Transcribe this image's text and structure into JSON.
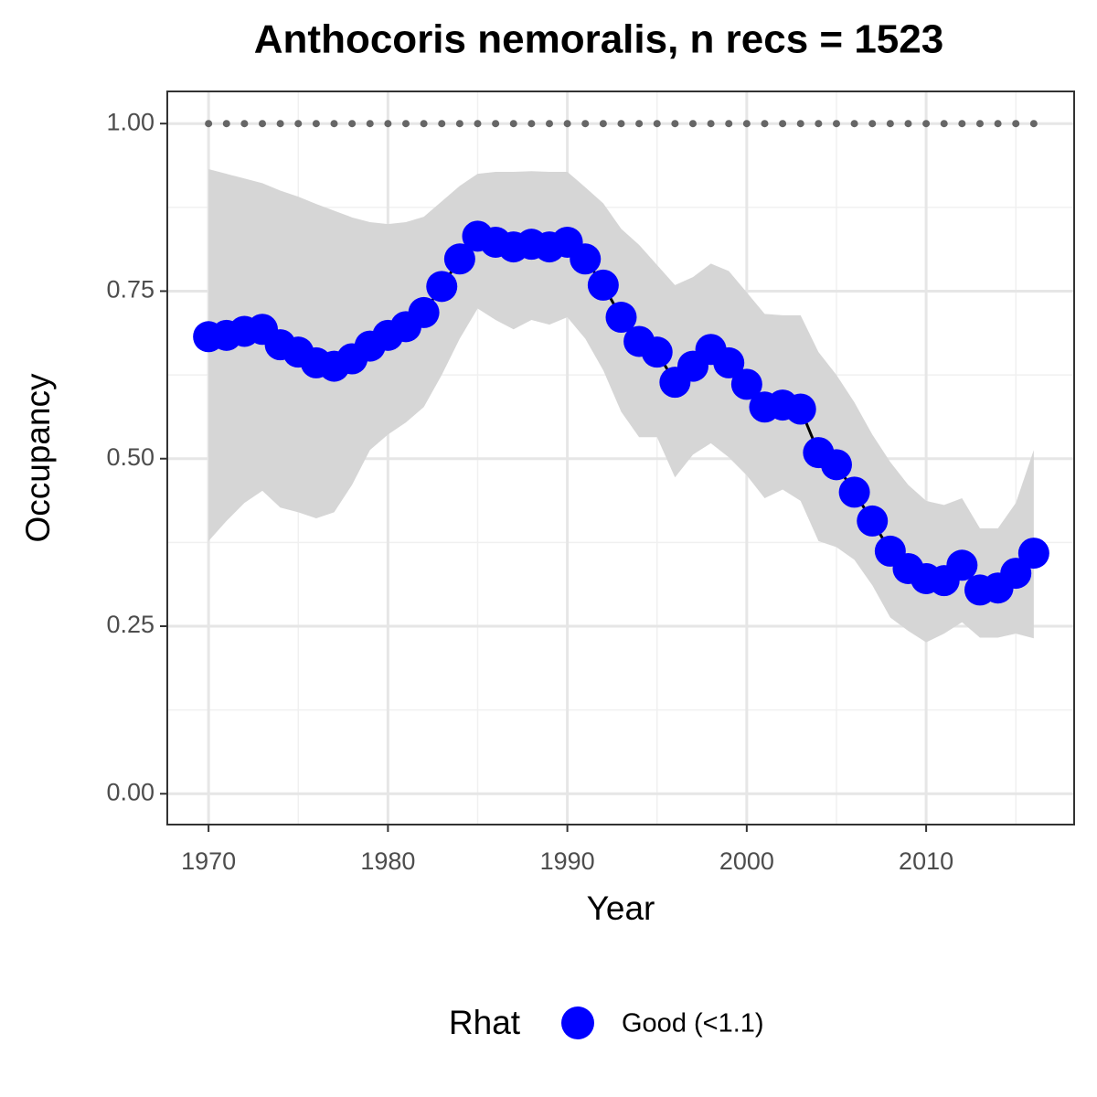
{
  "chart_data": {
    "type": "line",
    "title": "Anthocoris nemoralis, n recs = 1523",
    "x_label": "Year",
    "y_label": "Occupancy",
    "legend_title": "Rhat",
    "x": [
      1970,
      1971,
      1972,
      1973,
      1974,
      1975,
      1976,
      1977,
      1978,
      1979,
      1980,
      1981,
      1982,
      1983,
      1984,
      1985,
      1986,
      1987,
      1988,
      1989,
      1990,
      1991,
      1992,
      1993,
      1994,
      1995,
      1996,
      1997,
      1998,
      1999,
      2000,
      2001,
      2002,
      2003,
      2004,
      2005,
      2006,
      2007,
      2008,
      2009,
      2010,
      2011,
      2012,
      2013,
      2014,
      2015,
      2016
    ],
    "series": [
      {
        "name": "Good (<1.1)",
        "color": "#0000ff",
        "values": [
          0.682,
          0.684,
          0.69,
          0.693,
          0.67,
          0.659,
          0.643,
          0.638,
          0.649,
          0.668,
          0.684,
          0.697,
          0.718,
          0.757,
          0.798,
          0.832,
          0.823,
          0.816,
          0.82,
          0.816,
          0.823,
          0.798,
          0.759,
          0.711,
          0.675,
          0.659,
          0.614,
          0.638,
          0.663,
          0.643,
          0.611,
          0.577,
          0.58,
          0.574,
          0.509,
          0.491,
          0.45,
          0.407,
          0.362,
          0.336,
          0.321,
          0.318,
          0.341,
          0.304,
          0.307,
          0.329,
          0.359
        ]
      }
    ],
    "band": {
      "color": "#d6d6d6",
      "upper": [
        0.932,
        0.925,
        0.918,
        0.911,
        0.9,
        0.891,
        0.88,
        0.87,
        0.86,
        0.853,
        0.85,
        0.853,
        0.861,
        0.884,
        0.907,
        0.925,
        0.928,
        0.928,
        0.929,
        0.928,
        0.928,
        0.905,
        0.881,
        0.843,
        0.819,
        0.789,
        0.759,
        0.771,
        0.791,
        0.78,
        0.748,
        0.716,
        0.714,
        0.714,
        0.659,
        0.625,
        0.584,
        0.536,
        0.495,
        0.461,
        0.437,
        0.431,
        0.441,
        0.396,
        0.396,
        0.434,
        0.513
      ],
      "lower": [
        0.377,
        0.407,
        0.434,
        0.452,
        0.427,
        0.42,
        0.411,
        0.42,
        0.461,
        0.513,
        0.536,
        0.554,
        0.577,
        0.625,
        0.679,
        0.724,
        0.707,
        0.693,
        0.707,
        0.7,
        0.711,
        0.679,
        0.632,
        0.57,
        0.532,
        0.532,
        0.472,
        0.506,
        0.523,
        0.502,
        0.475,
        0.441,
        0.454,
        0.437,
        0.377,
        0.368,
        0.349,
        0.311,
        0.263,
        0.243,
        0.226,
        0.239,
        0.256,
        0.233,
        0.233,
        0.239,
        0.232
      ]
    },
    "reference": {
      "color": "#666666",
      "values": [
        1,
        1,
        1,
        1,
        1,
        1,
        1,
        1,
        1,
        1,
        1,
        1,
        1,
        1,
        1,
        1,
        1,
        1,
        1,
        1,
        1,
        1,
        1,
        1,
        1,
        1,
        1,
        1,
        1,
        1,
        1,
        1,
        1,
        1,
        1,
        1,
        1,
        1,
        1,
        1,
        1,
        1,
        1,
        1,
        1,
        1,
        1
      ]
    },
    "line_color": "#000000",
    "xlim": [
      1967.7,
      2018.25
    ],
    "ylim": [
      -0.046,
      1.048
    ],
    "xticks": [
      1970,
      1980,
      1990,
      2000,
      2010
    ],
    "yticks": [
      {
        "value": 0,
        "label": "0.00"
      },
      {
        "value": 0.25,
        "label": "0.25"
      },
      {
        "value": 0.5,
        "label": "0.50"
      },
      {
        "value": 0.75,
        "label": "0.75"
      },
      {
        "value": 1,
        "label": "1.00"
      }
    ],
    "xminor": [
      1975,
      1985,
      1995,
      2005,
      2015
    ],
    "yminor": [
      0.125,
      0.375,
      0.625,
      0.875
    ],
    "grid": true
  }
}
